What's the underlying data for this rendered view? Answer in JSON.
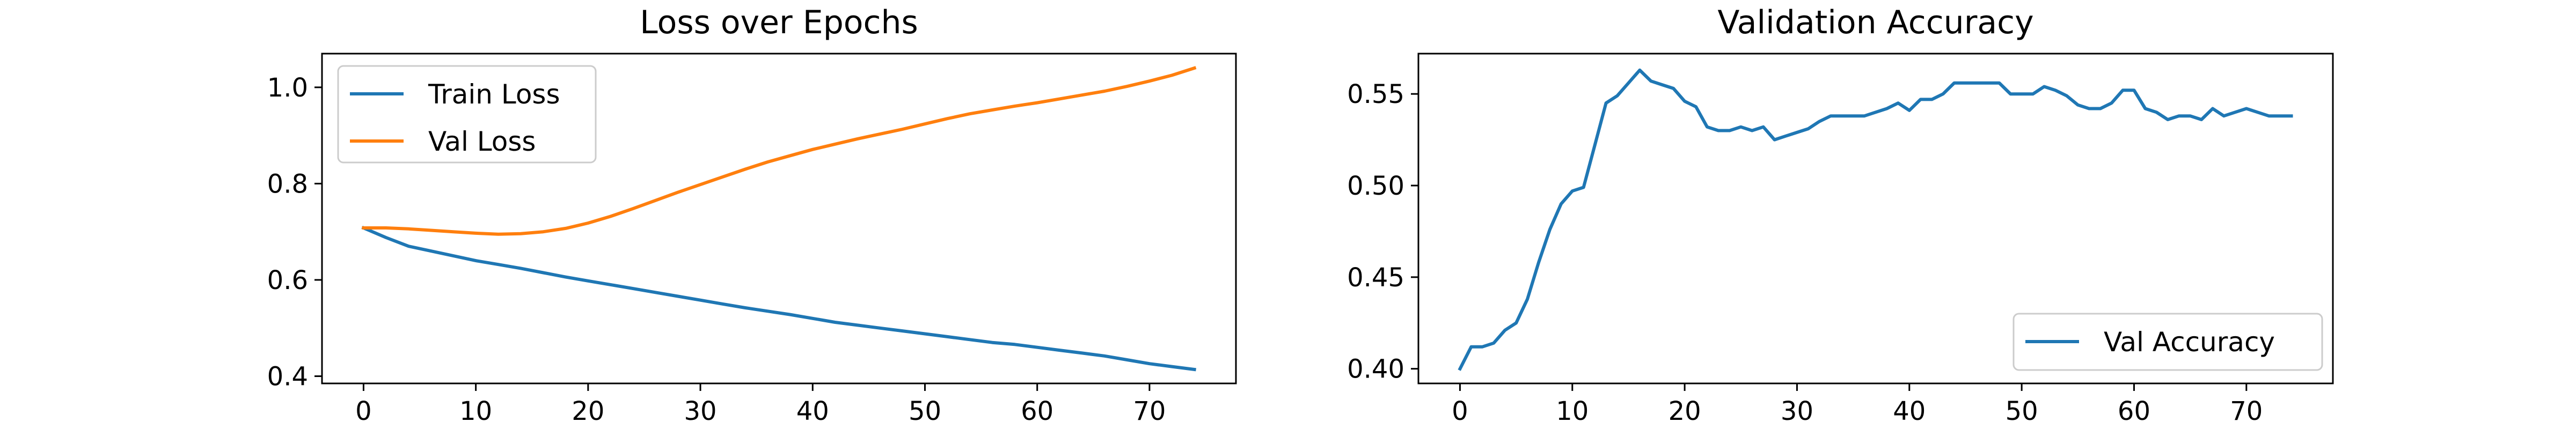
{
  "chart_data": [
    {
      "type": "line",
      "title": "Loss over Epochs",
      "xlabel": "",
      "ylabel": "",
      "xlim": [
        -3.7,
        77.7
      ],
      "ylim": [
        0.385,
        1.07
      ],
      "xticks": [
        0,
        10,
        20,
        30,
        40,
        50,
        60,
        70
      ],
      "yticks": [
        0.4,
        0.6,
        0.8,
        1.0
      ],
      "ytick_labels": [
        "0.4",
        "0.6",
        "0.8",
        "1.0"
      ],
      "grid": false,
      "legend_position": "upper left",
      "series": [
        {
          "name": "Train Loss",
          "color": "#1f77b4",
          "x": [
            0,
            2,
            4,
            6,
            8,
            10,
            12,
            14,
            16,
            18,
            20,
            22,
            24,
            26,
            28,
            30,
            32,
            34,
            36,
            38,
            40,
            42,
            44,
            46,
            48,
            50,
            52,
            54,
            56,
            58,
            60,
            62,
            64,
            66,
            68,
            70,
            72,
            74
          ],
          "values": [
            0.708,
            0.688,
            0.67,
            0.66,
            0.65,
            0.64,
            0.632,
            0.624,
            0.615,
            0.606,
            0.598,
            0.59,
            0.582,
            0.574,
            0.566,
            0.558,
            0.55,
            0.542,
            0.535,
            0.528,
            0.52,
            0.512,
            0.506,
            0.5,
            0.494,
            0.488,
            0.482,
            0.476,
            0.47,
            0.466,
            0.46,
            0.454,
            0.448,
            0.442,
            0.434,
            0.426,
            0.42,
            0.414
          ]
        },
        {
          "name": "Val Loss",
          "color": "#ff7f0e",
          "x": [
            0,
            2,
            4,
            6,
            8,
            10,
            12,
            14,
            16,
            18,
            20,
            22,
            24,
            26,
            28,
            30,
            32,
            34,
            36,
            38,
            40,
            42,
            44,
            46,
            48,
            50,
            52,
            54,
            56,
            58,
            60,
            62,
            64,
            66,
            68,
            70,
            72,
            74
          ],
          "values": [
            0.708,
            0.708,
            0.706,
            0.703,
            0.7,
            0.697,
            0.695,
            0.696,
            0.7,
            0.707,
            0.718,
            0.732,
            0.748,
            0.765,
            0.782,
            0.798,
            0.814,
            0.83,
            0.845,
            0.858,
            0.871,
            0.882,
            0.893,
            0.903,
            0.913,
            0.924,
            0.935,
            0.945,
            0.953,
            0.961,
            0.968,
            0.976,
            0.984,
            0.992,
            1.002,
            1.013,
            1.025,
            1.04
          ]
        }
      ]
    },
    {
      "type": "line",
      "title": "Validation Accuracy",
      "xlabel": "",
      "ylabel": "",
      "xlim": [
        -3.7,
        77.7
      ],
      "ylim": [
        0.392,
        0.572
      ],
      "xticks": [
        0,
        10,
        20,
        30,
        40,
        50,
        60,
        70
      ],
      "yticks": [
        0.4,
        0.45,
        0.5,
        0.55
      ],
      "ytick_labels": [
        "0.40",
        "0.45",
        "0.50",
        "0.55"
      ],
      "grid": false,
      "legend_position": "lower right",
      "series": [
        {
          "name": "Val Accuracy",
          "color": "#1f77b4",
          "x": [
            0,
            1,
            2,
            3,
            4,
            5,
            6,
            7,
            8,
            9,
            10,
            11,
            12,
            13,
            14,
            15,
            16,
            17,
            18,
            19,
            20,
            21,
            22,
            23,
            24,
            25,
            26,
            27,
            28,
            29,
            30,
            31,
            32,
            33,
            34,
            35,
            36,
            37,
            38,
            39,
            40,
            41,
            42,
            43,
            44,
            45,
            46,
            47,
            48,
            49,
            50,
            51,
            52,
            53,
            54,
            55,
            56,
            57,
            58,
            59,
            60,
            61,
            62,
            63,
            64,
            65,
            66,
            67,
            68,
            69,
            70,
            71,
            72,
            73,
            74
          ],
          "values": [
            0.4,
            0.412,
            0.412,
            0.414,
            0.421,
            0.425,
            0.438,
            0.458,
            0.476,
            0.49,
            0.497,
            0.499,
            0.522,
            0.545,
            0.549,
            0.556,
            0.563,
            0.557,
            0.555,
            0.553,
            0.546,
            0.543,
            0.532,
            0.53,
            0.53,
            0.532,
            0.53,
            0.532,
            0.525,
            0.527,
            0.529,
            0.531,
            0.535,
            0.538,
            0.538,
            0.538,
            0.538,
            0.54,
            0.542,
            0.545,
            0.541,
            0.547,
            0.547,
            0.55,
            0.556,
            0.556,
            0.556,
            0.556,
            0.556,
            0.55,
            0.55,
            0.55,
            0.554,
            0.552,
            0.549,
            0.544,
            0.542,
            0.542,
            0.545,
            0.552,
            0.552,
            0.542,
            0.54,
            0.536,
            0.538,
            0.538,
            0.536,
            0.542,
            0.538,
            0.54,
            0.542,
            0.54,
            0.538,
            0.538,
            0.538
          ]
        }
      ]
    }
  ]
}
